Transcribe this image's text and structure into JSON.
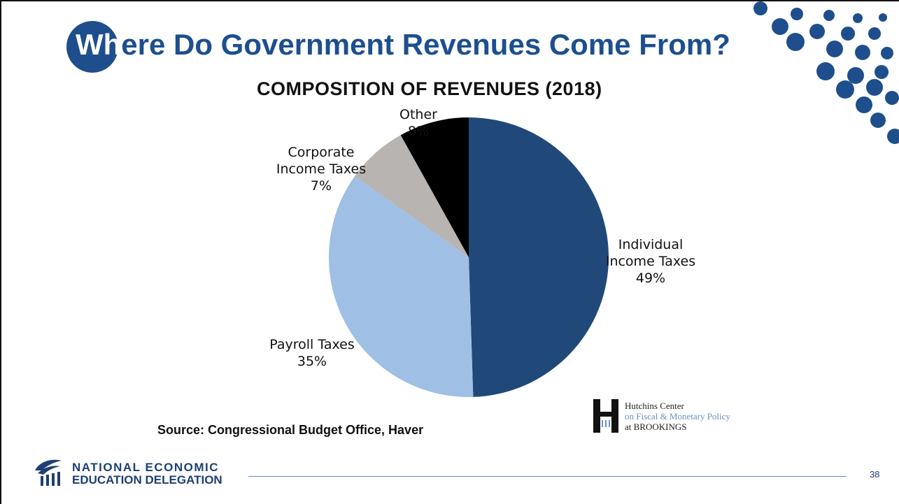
{
  "slide": {
    "title_lead": "Wh",
    "title_rest": "ere Do Government Revenues Come From?",
    "source": "Source: Congressional Budget Office, Haver",
    "page_number": "38",
    "accent_color": "#1e4f8c"
  },
  "branding": {
    "hutchins_line1": "Hutchins Center",
    "hutchins_line2": "on Fiscal & Monetary Policy",
    "hutchins_line3": "at BROOKINGS",
    "org_line1": "NATIONAL ECONOMIC",
    "org_line2": "EDUCATION DELEGATION"
  },
  "chart_data": {
    "type": "pie",
    "title": "COMPOSITION OF REVENUES (2018)",
    "legend": "none",
    "slices": [
      {
        "label_lines": [
          "Individual",
          "Income Taxes"
        ],
        "value": 49,
        "value_label": "49%",
        "color": "#20497a"
      },
      {
        "label_lines": [
          "Payroll Taxes"
        ],
        "value": 35,
        "value_label": "35%",
        "color": "#9fbfe5"
      },
      {
        "label_lines": [
          "Corporate",
          "Income Taxes"
        ],
        "value": 7,
        "value_label": "7%",
        "color": "#b7b4b1"
      },
      {
        "label_lines": [
          "Other"
        ],
        "value": 8,
        "value_label": "8%",
        "color": "#000000"
      }
    ]
  }
}
